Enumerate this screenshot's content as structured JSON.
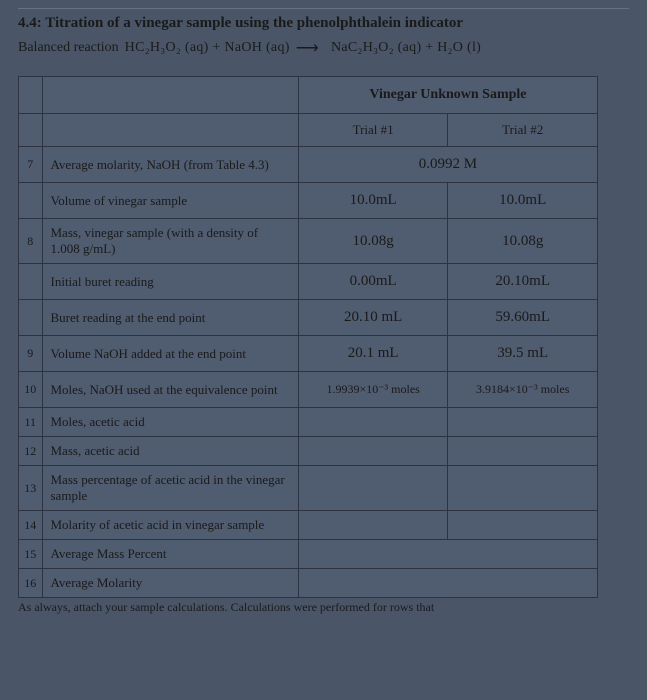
{
  "header": {
    "section_title": "4.4: Titration of a vinegar sample using the phenolphthalein indicator",
    "balanced_label": "Balanced reaction",
    "equation_left": "HC₂H₃O₂ (aq) + NaOH (aq)",
    "equation_right": "NaC₂H₃O₂ (aq) + H₂O (l)"
  },
  "table": {
    "main_header": "Vinegar Unknown Sample",
    "trial1": "Trial #1",
    "trial2": "Trial #2",
    "rows": [
      {
        "num": "7",
        "label": "Average molarity, NaOH (from Table 4.3)",
        "merged": "0.0992 M"
      },
      {
        "num": "",
        "label": "Volume of vinegar sample",
        "v1": "10.0mL",
        "v2": "10.0mL"
      },
      {
        "num": "8",
        "label": "Mass, vinegar sample (with a density of 1.008 g/mL)",
        "v1": "10.08g",
        "v2": "10.08g"
      },
      {
        "num": "",
        "label": "Initial buret reading",
        "v1": "0.00mL",
        "v2": "20.10mL"
      },
      {
        "num": "",
        "label": "Buret reading at the end point",
        "v1": "20.10 mL",
        "v2": "59.60mL"
      },
      {
        "num": "9",
        "label": "Volume NaOH added at the end point",
        "v1": "20.1 mL",
        "v2": "39.5 mL"
      },
      {
        "num": "10",
        "label": "Moles, NaOH used at the equivalence point",
        "v1": "1.9939×10⁻³ moles",
        "v2": "3.9184×10⁻³ moles"
      },
      {
        "num": "11",
        "label": "Moles, acetic acid",
        "v1": "",
        "v2": ""
      },
      {
        "num": "12",
        "label": "Mass, acetic acid",
        "v1": "",
        "v2": ""
      },
      {
        "num": "13",
        "label": "Mass percentage of acetic acid in the vinegar sample",
        "v1": "",
        "v2": ""
      },
      {
        "num": "14",
        "label": "Molarity of acetic acid in vinegar sample",
        "v1": "",
        "v2": ""
      },
      {
        "num": "15",
        "label": "Average Mass Percent",
        "merged": ""
      },
      {
        "num": "16",
        "label": "Average Molarity",
        "merged": ""
      }
    ]
  },
  "footer": "As always, attach your sample calculations. Calculations were performed for rows that",
  "colors": {
    "page_bg": "#4a5668",
    "cell_bg": "#505c70",
    "border": "#2d3340",
    "text": "#1a1a1a"
  }
}
